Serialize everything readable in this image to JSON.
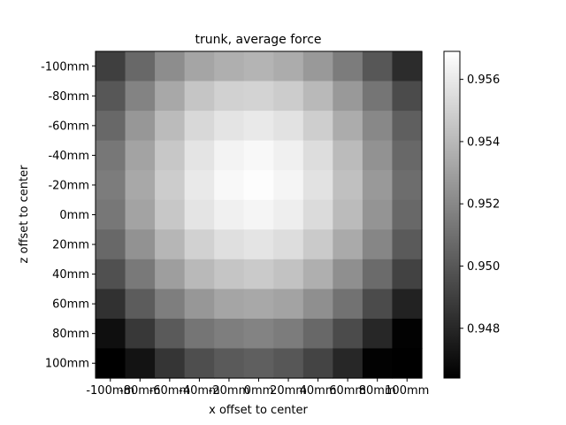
{
  "chart_data": {
    "type": "heatmap",
    "title": "trunk, average force",
    "xlabel": "x offset to center",
    "ylabel": "z offset to center",
    "x_categories": [
      "-100mm",
      "-80mm",
      "-60mm",
      "-40mm",
      "-20mm",
      "0mm",
      "20mm",
      "40mm",
      "60mm",
      "80mm",
      "100mm"
    ],
    "y_categories": [
      "-100mm",
      "-80mm",
      "-60mm",
      "-40mm",
      "-20mm",
      "0mm",
      "20mm",
      "40mm",
      "60mm",
      "80mm",
      "100mm"
    ],
    "values": [
      [
        0.949,
        0.9507,
        0.9522,
        0.9532,
        0.9536,
        0.9538,
        0.9535,
        0.9527,
        0.9515,
        0.95,
        0.9482
      ],
      [
        0.95,
        0.9518,
        0.9533,
        0.9545,
        0.955,
        0.9551,
        0.9548,
        0.954,
        0.9527,
        0.9512,
        0.9495
      ],
      [
        0.9507,
        0.9526,
        0.9541,
        0.9553,
        0.9558,
        0.956,
        0.9557,
        0.9549,
        0.9535,
        0.952,
        0.9503
      ],
      [
        0.9513,
        0.9531,
        0.9546,
        0.9558,
        0.9564,
        0.9566,
        0.9563,
        0.9555,
        0.9541,
        0.9524,
        0.9507
      ],
      [
        0.9515,
        0.9533,
        0.9548,
        0.956,
        0.9566,
        0.9568,
        0.9565,
        0.9557,
        0.9543,
        0.9527,
        0.9509
      ],
      [
        0.9513,
        0.9531,
        0.9546,
        0.9558,
        0.9563,
        0.9565,
        0.9562,
        0.9554,
        0.9541,
        0.9525,
        0.9507
      ],
      [
        0.9507,
        0.9524,
        0.9539,
        0.955,
        0.9556,
        0.9558,
        0.9555,
        0.9547,
        0.9534,
        0.9519,
        0.9501
      ],
      [
        0.9497,
        0.9514,
        0.9529,
        0.954,
        0.9545,
        0.9547,
        0.9544,
        0.9536,
        0.9523,
        0.9508,
        0.9491
      ],
      [
        0.9484,
        0.9502,
        0.9516,
        0.9526,
        0.9532,
        0.9533,
        0.9531,
        0.9523,
        0.9511,
        0.9495,
        0.9478
      ],
      [
        0.947,
        0.9487,
        0.9501,
        0.9512,
        0.9516,
        0.9518,
        0.9515,
        0.9507,
        0.9495,
        0.948,
        0.9465
      ],
      [
        0.9455,
        0.9472,
        0.9486,
        0.9496,
        0.9501,
        0.9503,
        0.95,
        0.9492,
        0.948,
        0.9465,
        0.9452
      ]
    ],
    "colormap": "gray",
    "vmin": 0.9464,
    "vmax": 0.9569,
    "colorbar_ticks": [
      "0.948",
      "0.950",
      "0.952",
      "0.954",
      "0.956"
    ],
    "colorbar_tick_values": [
      0.948,
      0.95,
      0.952,
      0.954,
      0.956
    ],
    "colors": {
      "low": "#000000",
      "high": "#ffffff",
      "axis": "#000000"
    }
  }
}
